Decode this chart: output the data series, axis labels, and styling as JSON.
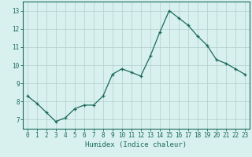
{
  "x": [
    0,
    1,
    2,
    3,
    4,
    5,
    6,
    7,
    8,
    9,
    10,
    11,
    12,
    13,
    14,
    15,
    16,
    17,
    18,
    19,
    20,
    21,
    22,
    23
  ],
  "y": [
    8.3,
    7.9,
    7.4,
    6.9,
    7.1,
    7.6,
    7.8,
    7.8,
    8.3,
    9.5,
    9.8,
    9.6,
    9.4,
    10.5,
    11.8,
    13.0,
    12.6,
    12.2,
    11.6,
    11.1,
    10.3,
    10.1,
    9.8,
    9.5
  ],
  "line_color": "#1a6b5a",
  "marker": "+",
  "marker_size": 3.5,
  "bg_color": "#d8f0ee",
  "grid_color": "#b0d0cc",
  "xlabel": "Humidex (Indice chaleur)",
  "ylim": [
    6.5,
    13.5
  ],
  "xlim": [
    -0.5,
    23.5
  ],
  "yticks": [
    7,
    8,
    9,
    10,
    11,
    12,
    13
  ],
  "xticks": [
    0,
    1,
    2,
    3,
    4,
    5,
    6,
    7,
    8,
    9,
    10,
    11,
    12,
    13,
    14,
    15,
    16,
    17,
    18,
    19,
    20,
    21,
    22,
    23
  ],
  "tick_fontsize": 5.5,
  "xlabel_fontsize": 6.5,
  "linewidth": 0.9,
  "marker_linewidth": 0.9
}
